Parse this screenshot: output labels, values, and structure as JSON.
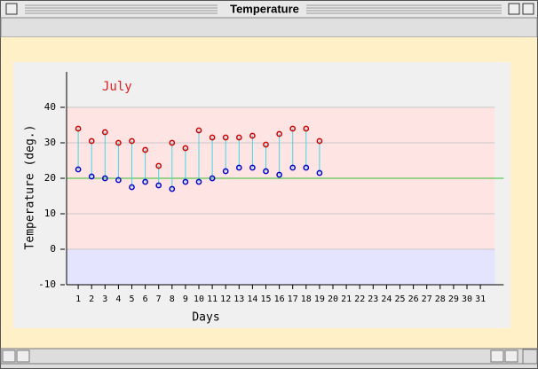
{
  "window": {
    "title": "Temperature"
  },
  "chart_data": {
    "type": "range",
    "title": "July",
    "title_color": "#e02020",
    "xlabel": "Days",
    "ylabel": "Temperature (deg.)",
    "x": [
      1,
      2,
      3,
      4,
      5,
      6,
      7,
      8,
      9,
      10,
      11,
      12,
      13,
      14,
      15,
      16,
      17,
      18,
      19
    ],
    "high": {
      "color": "#cc0000",
      "values": [
        34,
        30.5,
        33,
        30,
        30.5,
        28,
        23.5,
        30,
        28.5,
        33.5,
        31.5,
        31.5,
        31.5,
        32,
        29.5,
        32.5,
        34,
        34,
        30.5
      ]
    },
    "low": {
      "color": "#0000cc",
      "values": [
        22.5,
        20.5,
        20,
        19.5,
        17.5,
        19,
        18,
        17,
        19,
        19,
        20,
        22,
        23,
        23,
        22,
        21,
        23,
        23,
        21.5
      ]
    },
    "range_color": "#40d8e8",
    "xlim": [
      0,
      33
    ],
    "xticks": [
      1,
      2,
      3,
      4,
      5,
      6,
      7,
      8,
      9,
      10,
      11,
      12,
      13,
      14,
      15,
      16,
      17,
      18,
      19,
      20,
      21,
      22,
      23,
      24,
      25,
      26,
      27,
      28,
      29,
      30,
      31
    ],
    "ylim": [
      -10,
      50
    ],
    "yticks": [
      -10,
      0,
      10,
      20,
      30,
      40
    ],
    "grid": true,
    "bands": [
      {
        "from": 0,
        "to": 40,
        "color": "#ffe4e4"
      },
      {
        "from": -10,
        "to": 0,
        "color": "#e4e4ff"
      }
    ],
    "reference_line": {
      "value": 20,
      "color": "#30c030"
    }
  }
}
